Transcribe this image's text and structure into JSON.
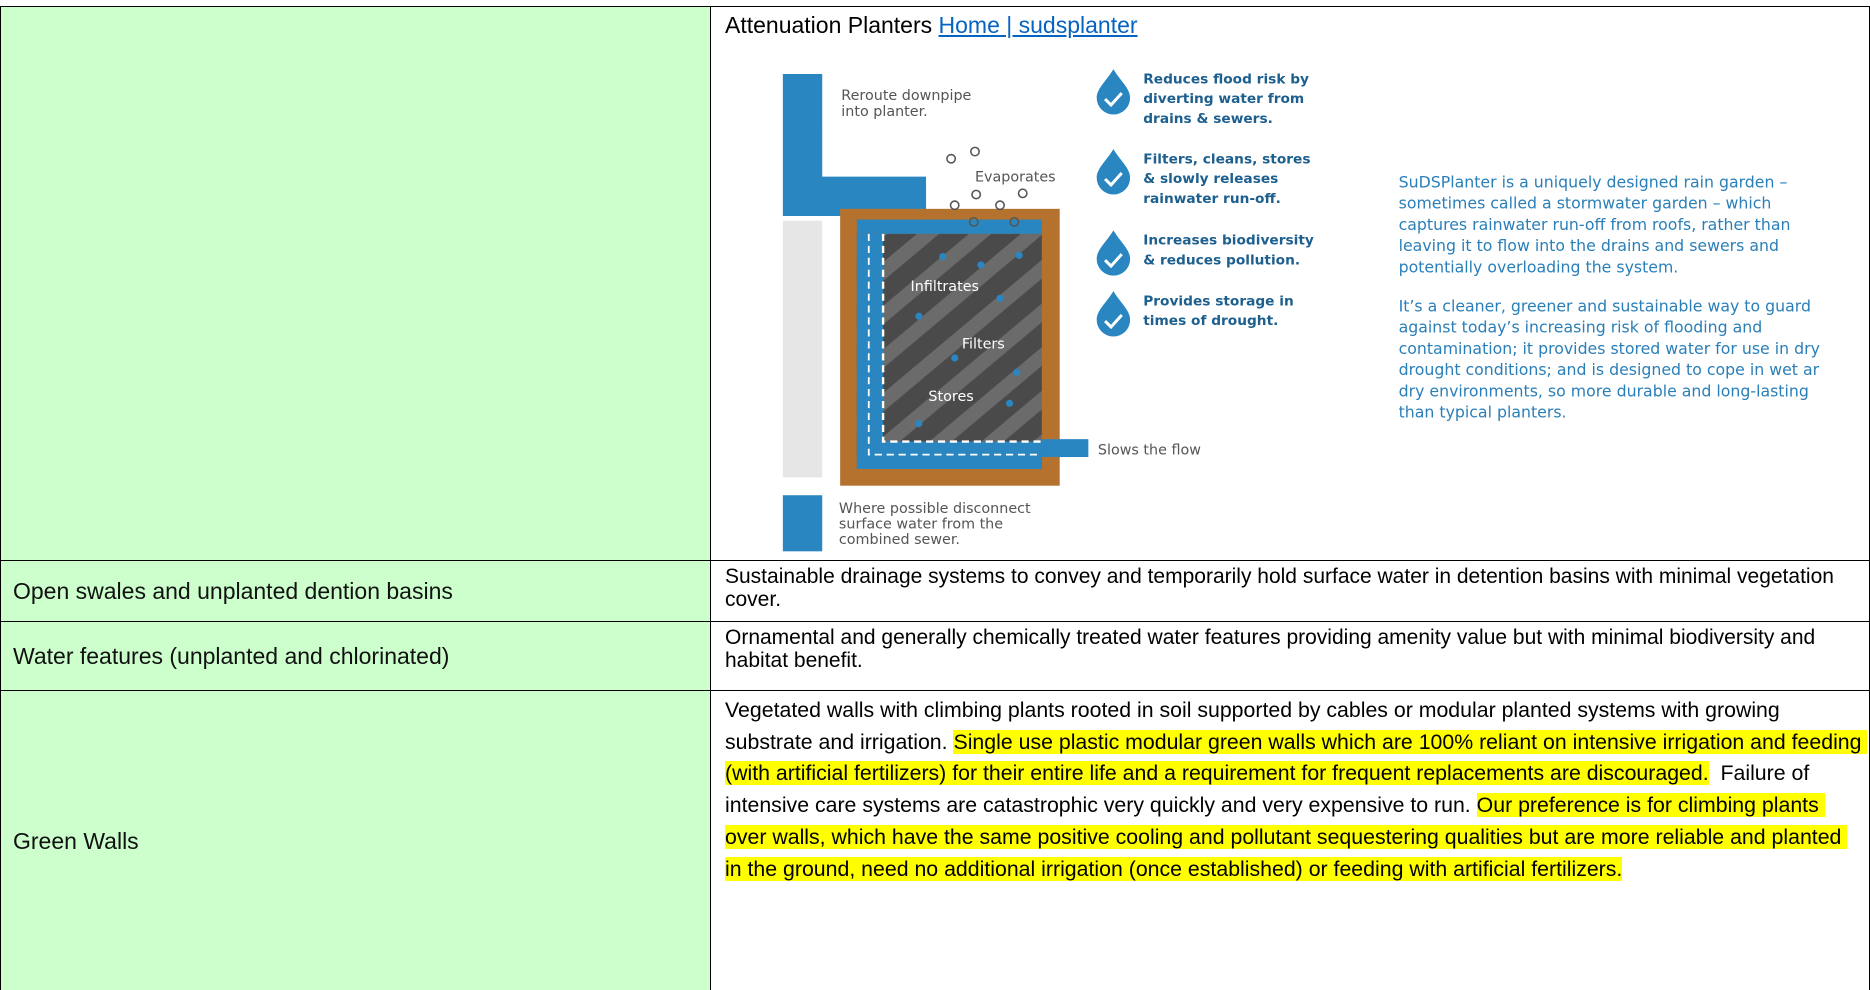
{
  "table": {
    "rows": [
      {
        "title": "Attenuation Planters",
        "link": "Home | sudsplanter",
        "diagram": {
          "reroute": [
            "Reroute downpipe",
            "into planter."
          ],
          "evaporates": "Evaporates",
          "infiltrates": "Infiltrates",
          "filters": "Filters",
          "stores": "Stores",
          "slows": "Slows the flow",
          "disconnect": [
            "Where possible disconnect",
            "surface water from the",
            "combined sewer."
          ],
          "benefits": [
            [
              "Reduces flood risk by",
              "diverting water from",
              "drains & sewers."
            ],
            [
              "Filters, cleans, stores",
              "& slowly releases",
              "rainwater run-off."
            ],
            [
              "Increases biodiversity",
              "& reduces pollution."
            ],
            [
              "Provides storage in",
              "times of drought."
            ]
          ],
          "paragraphs": [
            [
              "SuDSPlanter is a uniquely designed rain garden –",
              "sometimes called a stormwater garden – which",
              "captures rainwater run-off from roofs, rather than",
              "leaving it to flow into the drains and sewers and",
              "potentially overloading the system."
            ],
            [
              "It’s a cleaner, greener and sustainable way to guard",
              "against today’s increasing risk of flooding and",
              "contamination; it provides stored water for use in dry",
              "drought conditions; and is designed to cope in wet ar",
              "dry environments, so more durable and long-lasting",
              "than typical planters."
            ]
          ]
        }
      },
      {
        "label": "Open swales and unplanted dention basins",
        "description": "Sustainable drainage systems to convey and temporarily hold surface water in detention basins with minimal vegetation cover."
      },
      {
        "label": "Water features (unplanted and chlorinated)",
        "description": "Ornamental and generally chemically treated water features providing amenity value but with minimal biodiversity and habitat benefit."
      },
      {
        "label": "Green Walls",
        "segments": [
          {
            "text": "Vegetated walls with climbing plants rooted in soil supported by cables or modular planted systems with growing substrate and irrigation. ",
            "highlighted": false
          },
          {
            "text": "Single use plastic modular green walls which are 100% reliant on intensive irrigation and feeding (with artificial fertilizers) for their entire life and a requirement for frequent replacements are discouraged.",
            "highlighted": true
          },
          {
            "text": "  Failure of intensive care systems are catastrophic very quickly and very expensive to run. ",
            "highlighted": false
          },
          {
            "text": "Our preference is for climbing plants over walls, which have the same positive cooling and pollutant sequestering qualities but are more reliable and planted in the ground, need no additional irrigation (once established) or feeding with artificial fertilizers.",
            "highlighted": true
          }
        ]
      }
    ]
  }
}
